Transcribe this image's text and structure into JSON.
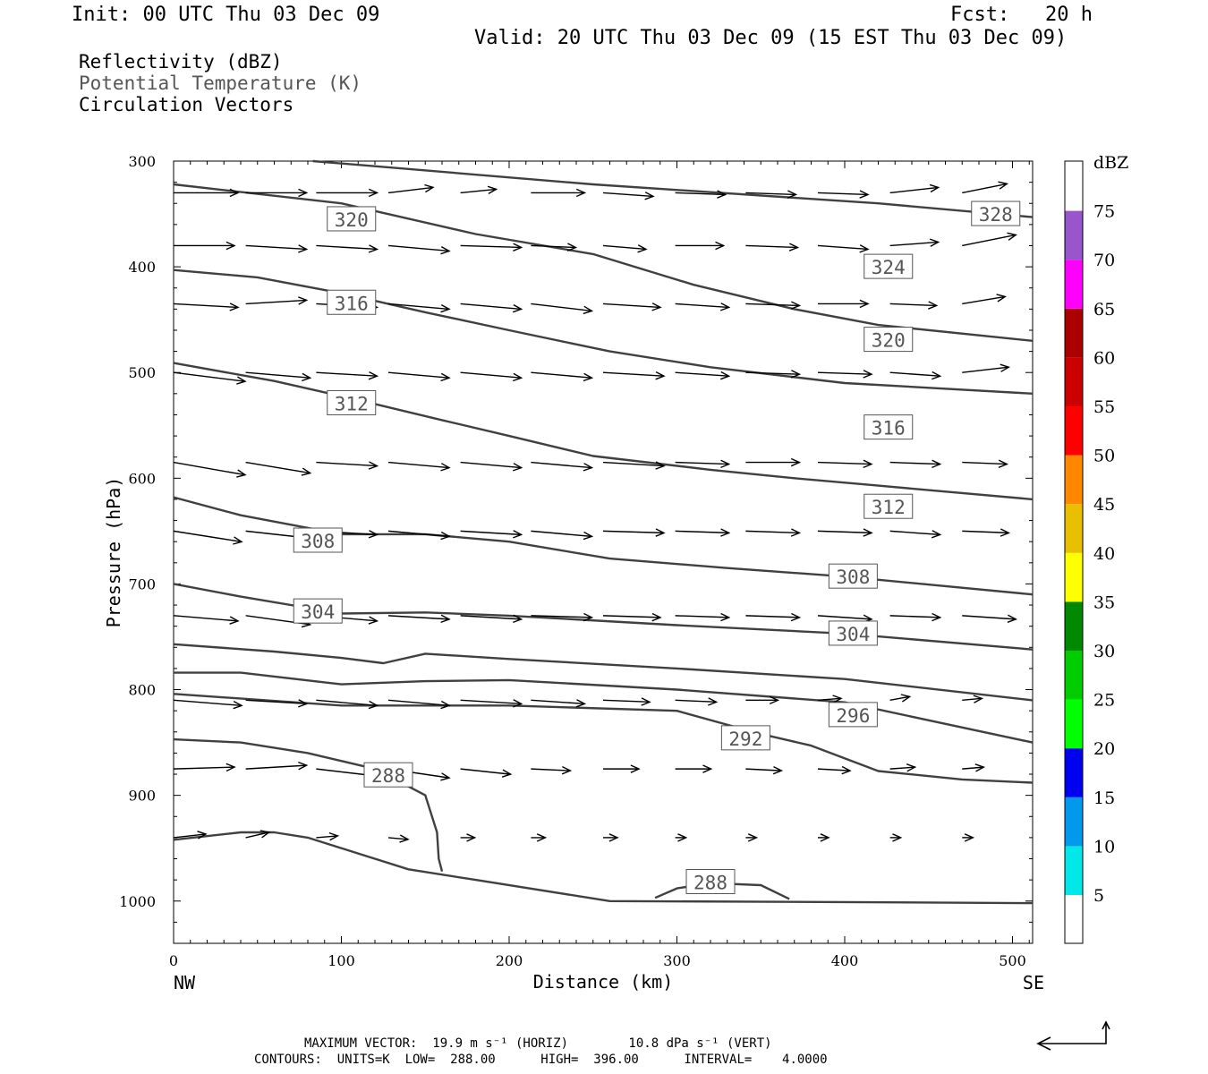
{
  "header": {
    "init": "Init: 00 UTC Thu 03 Dec 09",
    "fcst": "Fcst:   20 h",
    "valid": "Valid: 20 UTC Thu 03 Dec 09 (15 EST Thu 03 Dec 09)"
  },
  "legend": {
    "line1": "Reflectivity (dBZ)",
    "line2": "Potential Temperature (K)",
    "line3": "Circulation Vectors"
  },
  "footer": {
    "line1": "MAXIMUM VECTOR:  19.9 m s⁻¹ (HORIZ)        10.8 dPa s⁻¹ (VERT)",
    "line2": "CONTOURS:  UNITS=K  LOW=  288.00      HIGH=  396.00      INTERVAL=    4.0000"
  },
  "colors": {
    "contour": "#404040",
    "frame": "#000000",
    "dbz": [
      "#00e8e8",
      "#0099ee",
      "#0000f0",
      "#00ff00",
      "#00cc00",
      "#008800",
      "#ffff00",
      "#e8c000",
      "#ff8800",
      "#ff0000",
      "#cc0000",
      "#aa0000",
      "#ff00ff",
      "#9955cc"
    ]
  },
  "chart_data": {
    "type": "cross-section",
    "xlabel": "Distance (km)",
    "ylabel": "Pressure (hPa)",
    "xlim": [
      0,
      512
    ],
    "ylim": [
      1040,
      300
    ],
    "x_ticks": [
      0,
      100,
      200,
      300,
      400,
      500
    ],
    "y_ticks": [
      300,
      400,
      500,
      600,
      700,
      800,
      900,
      1000
    ],
    "x_end_labels": {
      "left": "NW",
      "right": "SE"
    },
    "colorbar": {
      "title": "dBZ",
      "levels": [
        5,
        10,
        15,
        20,
        25,
        30,
        35,
        40,
        45,
        50,
        55,
        60,
        65,
        70,
        75
      ]
    },
    "contours": [
      {
        "value": 328,
        "points": [
          [
            83,
            300
          ],
          [
            250,
            322
          ],
          [
            420,
            340
          ],
          [
            512,
            353
          ]
        ]
      },
      {
        "value": 324,
        "points": [
          [
            0,
            322
          ],
          [
            100,
            340
          ],
          [
            180,
            369
          ],
          [
            250,
            388
          ],
          [
            310,
            417
          ],
          [
            370,
            440
          ],
          [
            420,
            455
          ],
          [
            512,
            470
          ]
        ]
      },
      {
        "value": 320,
        "points": [
          [
            0,
            403
          ],
          [
            50,
            410
          ],
          [
            100,
            425
          ],
          [
            150,
            443
          ],
          [
            200,
            460
          ],
          [
            260,
            480
          ],
          [
            320,
            495
          ],
          [
            400,
            510
          ],
          [
            512,
            520
          ]
        ]
      },
      {
        "value": 316,
        "points": [
          [
            0,
            491
          ],
          [
            60,
            508
          ],
          [
            110,
            526
          ],
          [
            160,
            545
          ],
          [
            200,
            560
          ],
          [
            250,
            579
          ],
          [
            320,
            592
          ],
          [
            370,
            600
          ],
          [
            420,
            607
          ],
          [
            512,
            620
          ]
        ]
      },
      {
        "value": 312,
        "points": [
          [
            0,
            618
          ],
          [
            40,
            635
          ],
          [
            100,
            653
          ],
          [
            150,
            653
          ],
          [
            200,
            660
          ],
          [
            260,
            676
          ],
          [
            330,
            685
          ],
          [
            400,
            693
          ],
          [
            512,
            710
          ]
        ]
      },
      {
        "value": 308,
        "points": [
          [
            0,
            700
          ],
          [
            40,
            712
          ],
          [
            100,
            728
          ],
          [
            150,
            727
          ],
          [
            200,
            730
          ],
          [
            300,
            739
          ],
          [
            400,
            747
          ],
          [
            512,
            762
          ]
        ]
      },
      {
        "value": 304,
        "points": [
          [
            0,
            757
          ],
          [
            60,
            764
          ],
          [
            100,
            770
          ],
          [
            125,
            775
          ],
          [
            150,
            766
          ],
          [
            200,
            771
          ],
          [
            300,
            780
          ],
          [
            400,
            790
          ],
          [
            512,
            810
          ]
        ]
      },
      {
        "value": 300,
        "points": [
          [
            0,
            784
          ],
          [
            40,
            784
          ],
          [
            100,
            795
          ],
          [
            150,
            792
          ],
          [
            200,
            791
          ],
          [
            300,
            800
          ],
          [
            400,
            812
          ],
          [
            512,
            850
          ]
        ]
      },
      {
        "value": 296,
        "points": [
          [
            0,
            804
          ],
          [
            100,
            815
          ],
          [
            200,
            815
          ],
          [
            300,
            820
          ],
          [
            350,
            842
          ],
          [
            380,
            853
          ],
          [
            420,
            877
          ],
          [
            470,
            885
          ],
          [
            512,
            888
          ]
        ]
      },
      {
        "value": 292,
        "points": [
          [
            0,
            847
          ],
          [
            40,
            850
          ],
          [
            80,
            860
          ],
          [
            120,
            875
          ],
          [
            150,
            900
          ],
          [
            157,
            935
          ],
          [
            158,
            960
          ],
          [
            160,
            972
          ]
        ]
      },
      {
        "value": 288,
        "points": [
          [
            0,
            942
          ],
          [
            40,
            935
          ],
          [
            60,
            935
          ],
          [
            80,
            940
          ],
          [
            110,
            955
          ],
          [
            140,
            970
          ],
          [
            180,
            980
          ],
          [
            260,
            1000
          ],
          [
            400,
            1001
          ],
          [
            512,
            1002
          ]
        ]
      },
      {
        "value": 288,
        "points": [
          [
            287,
            997
          ],
          [
            300,
            988
          ],
          [
            320,
            983
          ],
          [
            350,
            985
          ],
          [
            367,
            998
          ]
        ]
      }
    ],
    "contour_labels": [
      {
        "value": 328,
        "x": 490,
        "p": 350
      },
      {
        "value": 324,
        "x": 426,
        "p": 400
      },
      {
        "value": 320,
        "x": 106,
        "p": 355
      },
      {
        "value": 320,
        "x": 426,
        "p": 469
      },
      {
        "value": 316,
        "x": 106,
        "p": 434
      },
      {
        "value": 316,
        "x": 426,
        "p": 552
      },
      {
        "value": 312,
        "x": 106,
        "p": 529
      },
      {
        "value": 312,
        "x": 426,
        "p": 627
      },
      {
        "value": 308,
        "x": 86,
        "p": 659
      },
      {
        "value": 308,
        "x": 405,
        "p": 693
      },
      {
        "value": 304,
        "x": 86,
        "p": 726
      },
      {
        "value": 304,
        "x": 405,
        "p": 747
      },
      {
        "value": 296,
        "x": 405,
        "p": 824
      },
      {
        "value": 292,
        "x": 341,
        "p": 846
      },
      {
        "value": 288,
        "x": 128,
        "p": 881
      },
      {
        "value": 288,
        "x": 320,
        "p": 982
      }
    ],
    "vector_rows": [
      {
        "p": 330,
        "x0": [
          0,
          43,
          85,
          128,
          171,
          213,
          256,
          299,
          341,
          384,
          427,
          470
        ],
        "u": [
          36,
          34,
          34,
          25,
          20,
          30,
          28,
          28,
          28,
          28,
          27,
          25
        ],
        "w": [
          0,
          0,
          0,
          3,
          2,
          0,
          -2,
          -1,
          -1,
          -1,
          3,
          5
        ]
      },
      {
        "p": 380,
        "x0": [
          0,
          43,
          85,
          128,
          171,
          213,
          256,
          299,
          341,
          384,
          427,
          470
        ],
        "u": [
          34,
          34,
          34,
          34,
          34,
          25,
          24,
          27,
          29,
          28,
          27,
          30
        ],
        "w": [
          0,
          -2,
          -2,
          -3,
          -1,
          -1,
          -2,
          0,
          -1,
          -2,
          2,
          6
        ]
      },
      {
        "p": 435,
        "x0": [
          0,
          43,
          85,
          128,
          171,
          213,
          256,
          299,
          341,
          384,
          427,
          470
        ],
        "u": [
          36,
          34,
          34,
          34,
          34,
          34,
          32,
          30,
          30,
          28,
          26,
          24
        ],
        "w": [
          -2,
          2,
          -2,
          -3,
          -3,
          -4,
          -2,
          -2,
          -1,
          0,
          -1,
          4
        ]
      },
      {
        "p": 500,
        "x0": [
          0,
          43,
          85,
          128,
          171,
          213,
          256,
          299,
          341,
          384,
          427,
          470
        ],
        "u": [
          40,
          36,
          34,
          34,
          34,
          34,
          34,
          30,
          30,
          30,
          28,
          26
        ],
        "w": [
          -5,
          -3,
          -2,
          -3,
          -3,
          -3,
          -2,
          -2,
          -1,
          -1,
          -2,
          3
        ]
      },
      {
        "p": 585,
        "x0": [
          0,
          43,
          85,
          128,
          171,
          213,
          256,
          299,
          341,
          384,
          427,
          470
        ],
        "u": [
          40,
          36,
          34,
          34,
          34,
          34,
          34,
          30,
          30,
          30,
          28,
          25
        ],
        "w": [
          -7,
          -6,
          -2,
          -3,
          -3,
          -3,
          -2,
          -1,
          0,
          -1,
          -1,
          -1
        ]
      },
      {
        "p": 650,
        "x0": [
          0,
          43,
          85,
          128,
          171,
          213,
          256,
          299,
          341,
          384,
          427,
          470
        ],
        "u": [
          38,
          36,
          34,
          34,
          34,
          34,
          34,
          30,
          30,
          30,
          28,
          26
        ],
        "w": [
          -6,
          -4,
          -2,
          -3,
          -2,
          -3,
          -1,
          -1,
          -1,
          -1,
          -2,
          -1
        ]
      },
      {
        "p": 730,
        "x0": [
          0,
          43,
          85,
          128,
          171,
          213,
          256,
          299,
          341,
          384,
          427,
          470
        ],
        "u": [
          36,
          36,
          34,
          34,
          34,
          34,
          32,
          30,
          30,
          30,
          28,
          30
        ],
        "w": [
          -3,
          -5,
          -3,
          -2,
          -2,
          -1,
          -1,
          -1,
          -1,
          -2,
          -1,
          -2
        ]
      },
      {
        "p": 810,
        "x0": [
          0,
          43,
          85,
          128,
          171,
          213,
          256,
          299,
          341,
          384,
          427,
          470
        ],
        "u": [
          38,
          34,
          34,
          34,
          34,
          30,
          26,
          23,
          18,
          13,
          11,
          11
        ],
        "w": [
          -3,
          -2,
          -3,
          -3,
          -2,
          -2,
          -1,
          -1,
          0,
          1,
          2,
          1
        ]
      },
      {
        "p": 875,
        "x0": [
          0,
          43,
          85,
          128,
          171,
          213,
          256,
          299,
          341,
          384,
          427,
          470
        ],
        "u": [
          34,
          34,
          34,
          34,
          28,
          22,
          20,
          20,
          20,
          18,
          14,
          12
        ],
        "w": [
          1,
          2,
          -4,
          -5,
          -3,
          -1,
          0,
          0,
          -1,
          -1,
          1,
          1
        ]
      },
      {
        "p": 940,
        "x0": [
          0,
          43,
          85,
          128,
          171,
          213,
          256,
          299,
          341,
          384,
          427,
          470
        ],
        "u": [
          18,
          13,
          12,
          11,
          8,
          8,
          8,
          6,
          6,
          6,
          6,
          6
        ],
        "w": [
          2,
          3,
          1,
          -1,
          0,
          0,
          0,
          0,
          0,
          0,
          0,
          0
        ]
      }
    ]
  }
}
